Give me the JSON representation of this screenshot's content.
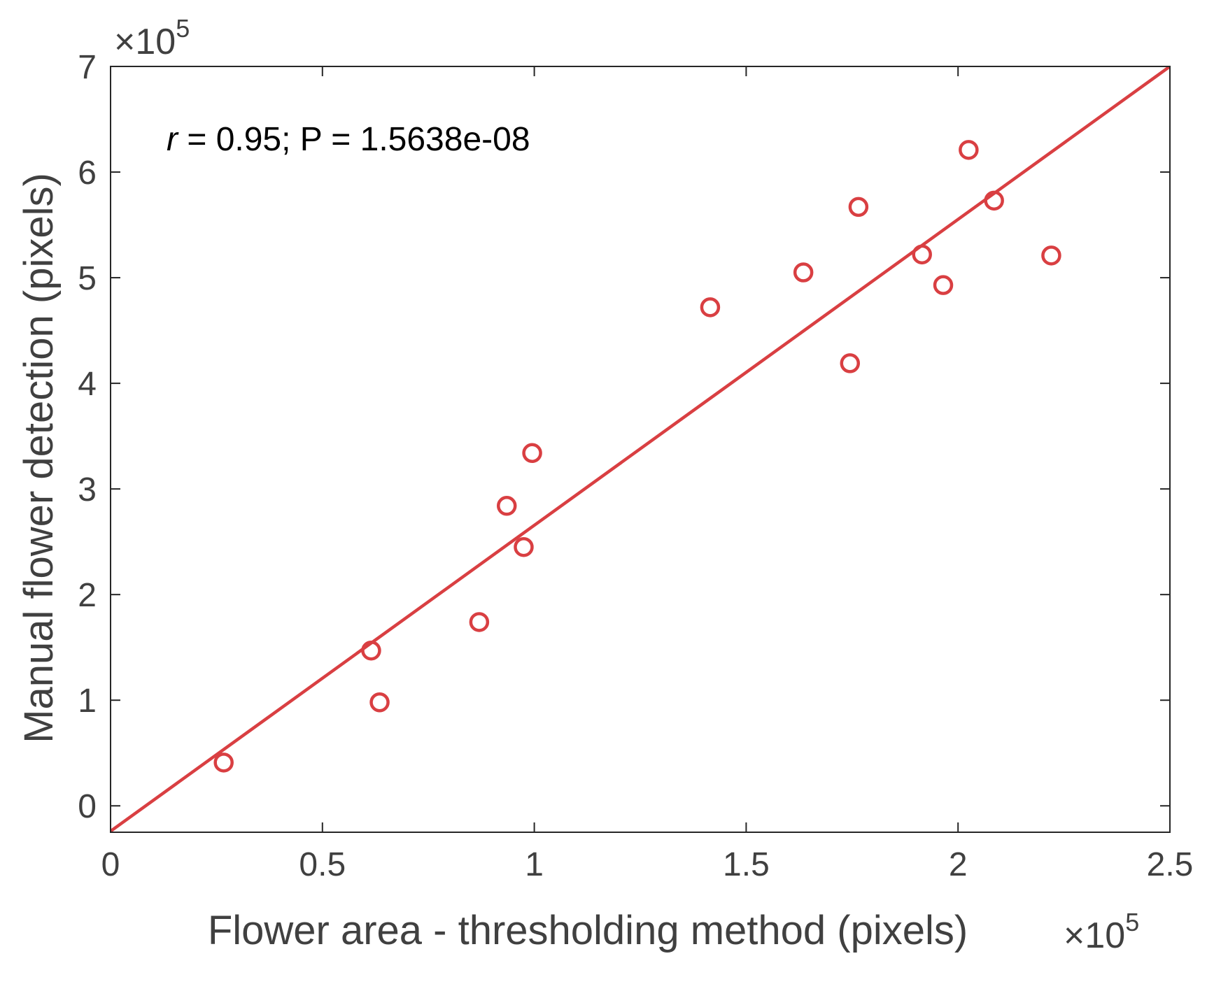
{
  "chart_data": {
    "type": "scatter",
    "xlabel": "Flower area - thresholding method (pixels)",
    "ylabel": "Manual flower detection (pixels)",
    "x_multiplier": {
      "base": "×10",
      "exp": "5"
    },
    "y_multiplier": {
      "base": "×10",
      "exp": "5"
    },
    "xlim": [
      0,
      2.5
    ],
    "ylim": [
      -0.25,
      7
    ],
    "xticks": [
      0,
      0.5,
      1,
      1.5,
      2,
      2.5
    ],
    "xtick_labels": [
      "0",
      "0.5",
      "1",
      "1.5",
      "2",
      "2.5"
    ],
    "yticks": [
      0,
      1,
      2,
      3,
      4,
      5,
      6,
      7
    ],
    "ytick_labels": [
      "0",
      "1",
      "2",
      "3",
      "4",
      "5",
      "6",
      "7"
    ],
    "grid": false,
    "annotation": {
      "italic": "r",
      "rest": " = 0.95; P = 1.5638e-08"
    },
    "colors": {
      "marker": "#d93f42",
      "fit_line": "#d93f42",
      "axes": "#262626",
      "text": "#404040"
    },
    "series": [
      {
        "marker": "open-circle",
        "x": [
          0.267,
          0.615,
          0.635,
          0.87,
          0.935,
          0.975,
          0.995,
          1.415,
          1.635,
          1.745,
          1.765,
          1.915,
          1.965,
          2.025,
          2.085,
          2.22
        ],
        "y": [
          0.41,
          1.47,
          0.98,
          1.74,
          2.84,
          2.45,
          3.34,
          4.72,
          5.05,
          4.19,
          5.67,
          5.22,
          4.93,
          6.21,
          5.73,
          5.21
        ]
      }
    ],
    "fit_line": {
      "x": [
        0,
        2.5
      ],
      "y": [
        -0.24,
        7.0
      ]
    }
  }
}
